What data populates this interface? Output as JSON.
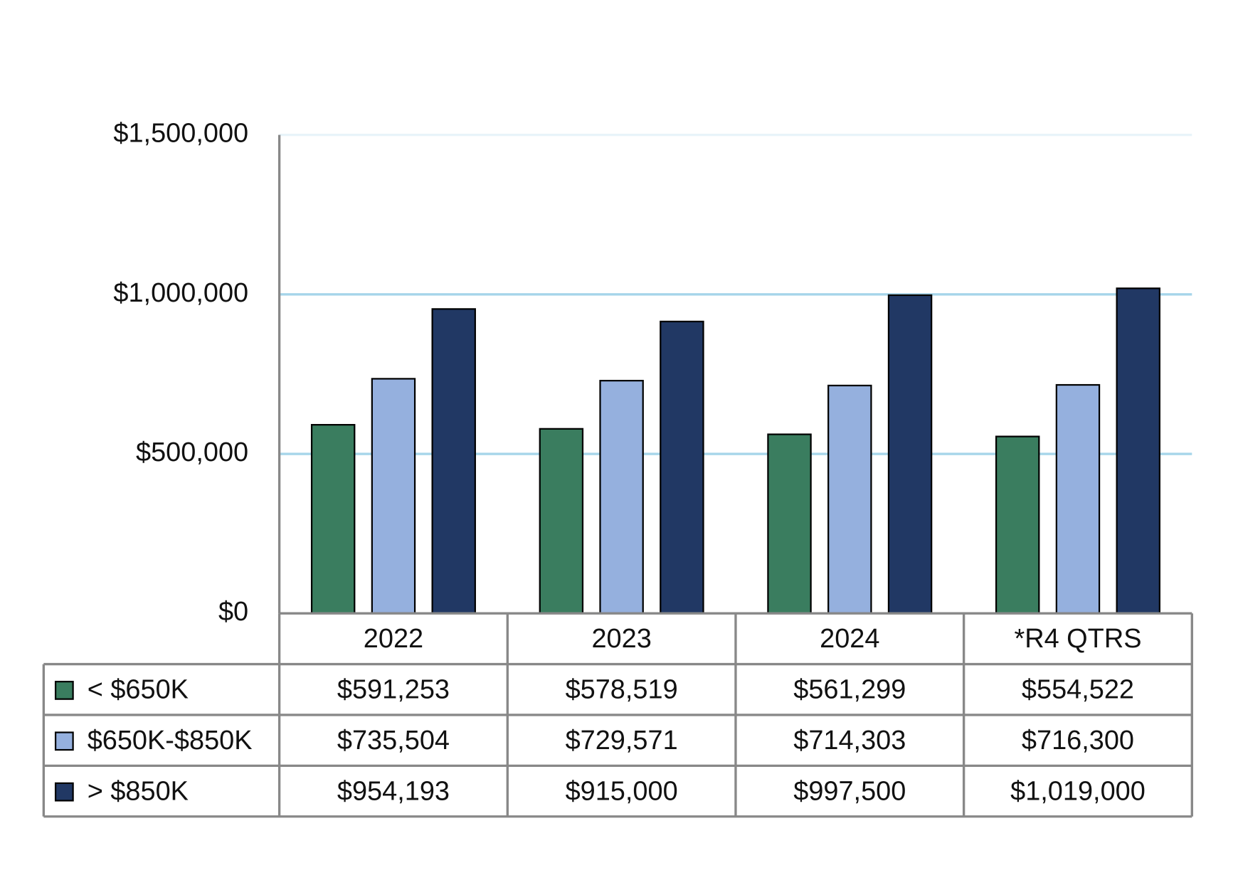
{
  "chart_data": {
    "type": "bar",
    "categories": [
      "2022",
      "2023",
      "2024",
      "*R4 QTRS"
    ],
    "series": [
      {
        "name": "< $650K",
        "color": "#3a7d5f",
        "values": [
          591253,
          578519,
          561299,
          554522
        ],
        "value_labels": [
          "$591,253",
          "$578,519",
          "$561,299",
          "$554,522"
        ]
      },
      {
        "name": "$650K-$850K",
        "color": "#95b0de",
        "values": [
          735504,
          729571,
          714303,
          716300
        ],
        "value_labels": [
          "$735,504",
          "$729,571",
          "$714,303",
          "$716,300"
        ]
      },
      {
        "name": "> $850K",
        "color": "#213864",
        "values": [
          954193,
          915000,
          997500,
          1019000
        ],
        "value_labels": [
          "$954,193",
          "$915,000",
          "$997,500",
          "$1,019,000"
        ]
      }
    ],
    "ylim": [
      0,
      1500000
    ],
    "yticks": [
      {
        "value": 0,
        "label": "$0"
      },
      {
        "value": 500000,
        "label": "$500,000"
      },
      {
        "value": 1000000,
        "label": "$1,000,000"
      },
      {
        "value": 1500000,
        "label": "$1,500,000"
      }
    ],
    "grid": true,
    "grid_color": "#a6d5ea"
  }
}
